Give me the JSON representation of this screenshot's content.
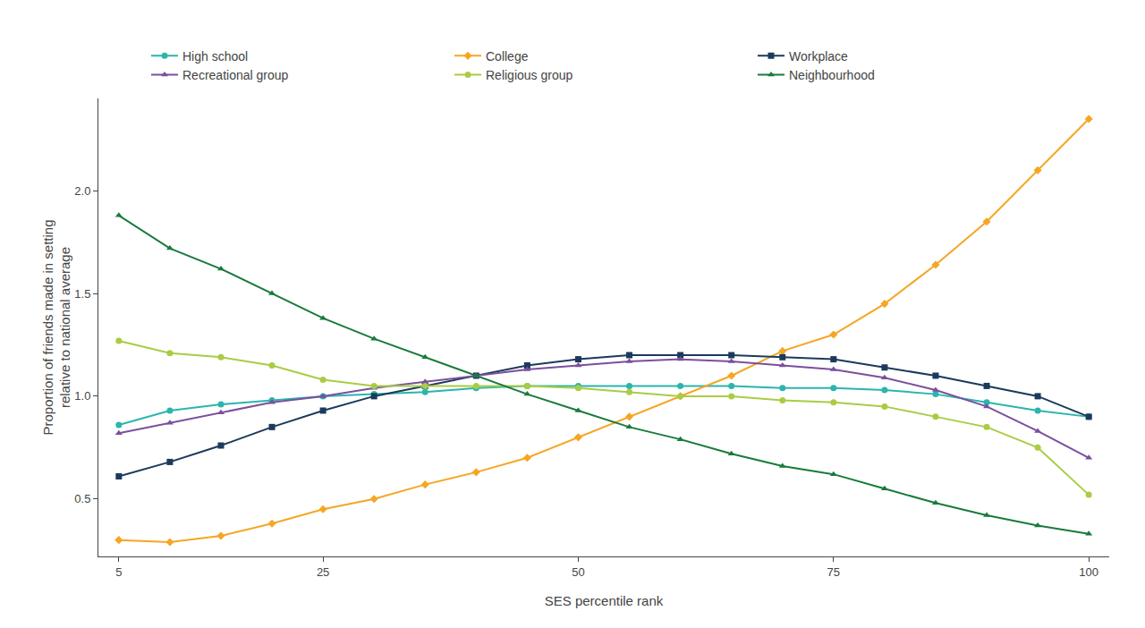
{
  "chart_data": {
    "type": "line",
    "x": [
      5,
      10,
      15,
      20,
      25,
      30,
      35,
      40,
      45,
      50,
      55,
      60,
      65,
      70,
      75,
      80,
      85,
      90,
      95,
      100
    ],
    "series": [
      {
        "name": "High school",
        "color": "#2BB5AD",
        "marker": "circle",
        "values": [
          0.86,
          0.93,
          0.96,
          0.98,
          1.0,
          1.01,
          1.02,
          1.04,
          1.05,
          1.05,
          1.05,
          1.05,
          1.05,
          1.04,
          1.04,
          1.03,
          1.01,
          0.97,
          0.93,
          0.9
        ]
      },
      {
        "name": "College",
        "color": "#F5A623",
        "marker": "diamond",
        "values": [
          0.3,
          0.29,
          0.32,
          0.38,
          0.45,
          0.5,
          0.57,
          0.63,
          0.7,
          0.8,
          0.9,
          1.0,
          1.1,
          1.22,
          1.3,
          1.45,
          1.64,
          1.85,
          2.1,
          2.35
        ]
      },
      {
        "name": "Workplace",
        "color": "#1B3A5C",
        "marker": "square",
        "values": [
          0.61,
          0.68,
          0.76,
          0.85,
          0.93,
          1.0,
          1.05,
          1.1,
          1.15,
          1.18,
          1.2,
          1.2,
          1.2,
          1.19,
          1.18,
          1.14,
          1.1,
          1.05,
          1.0,
          0.9
        ]
      },
      {
        "name": "Recreational group",
        "color": "#7B4F9E",
        "marker": "triangle-up",
        "values": [
          0.82,
          0.87,
          0.92,
          0.97,
          1.0,
          1.04,
          1.07,
          1.1,
          1.13,
          1.15,
          1.17,
          1.18,
          1.17,
          1.15,
          1.13,
          1.09,
          1.03,
          0.95,
          0.83,
          0.7
        ]
      },
      {
        "name": "Religious group",
        "color": "#AACC44",
        "marker": "circle",
        "values": [
          1.27,
          1.21,
          1.19,
          1.15,
          1.08,
          1.05,
          1.05,
          1.05,
          1.05,
          1.04,
          1.02,
          1.0,
          1.0,
          0.98,
          0.97,
          0.95,
          0.9,
          0.85,
          0.75,
          0.52
        ]
      },
      {
        "name": "Neighbourhood",
        "color": "#1A7A3C",
        "marker": "triangle-up",
        "values": [
          1.88,
          1.72,
          1.62,
          1.5,
          1.38,
          1.28,
          1.19,
          1.1,
          1.01,
          0.93,
          0.85,
          0.79,
          0.72,
          0.66,
          0.62,
          0.55,
          0.48,
          0.42,
          0.37,
          0.33
        ]
      }
    ],
    "xlabel": "SES percentile rank",
    "ylabel": "Proportion of friends made in setting\nrelative to national average",
    "xlim": [
      3,
      102
    ],
    "ylim": [
      0.22,
      2.45
    ],
    "xticks": [
      5,
      25,
      50,
      75,
      100
    ],
    "yticks": [
      {
        "value": 0.5,
        "label": "0.5"
      },
      {
        "value": 1.0,
        "label": "1.0"
      },
      {
        "value": 1.5,
        "label": "1.5"
      },
      {
        "value": 2.0,
        "label": "2.0"
      }
    ],
    "grid": false,
    "legend": "top"
  }
}
